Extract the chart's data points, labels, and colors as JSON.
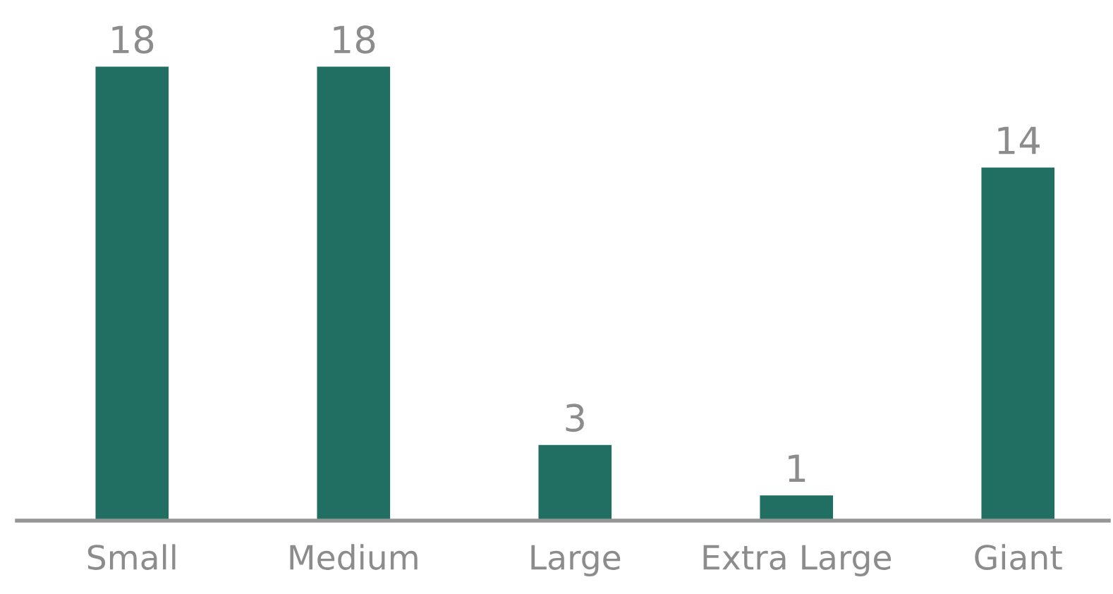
{
  "chart_data": {
    "type": "bar",
    "categories": [
      "Small",
      "Medium",
      "Large",
      "Extra Large",
      "Giant"
    ],
    "values": [
      18,
      18,
      3,
      1,
      14
    ],
    "color": "#206f62",
    "data_labels": true
  }
}
